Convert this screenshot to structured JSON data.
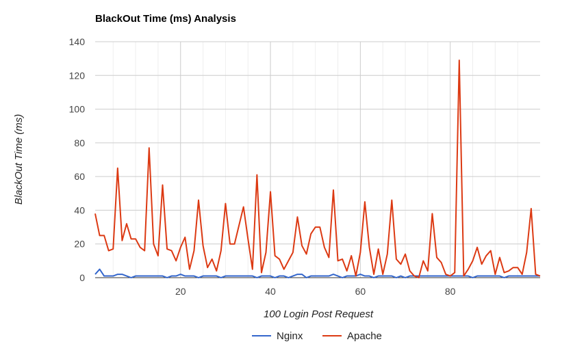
{
  "chart_data": {
    "type": "line",
    "title": "BlackOut Time (ms) Analysis",
    "xlabel": "100 Login Post Request",
    "ylabel": "BlackOut Time (ms)",
    "xlim": [
      1,
      100
    ],
    "ylim": [
      0,
      140
    ],
    "x_ticks": [
      20,
      40,
      60,
      80
    ],
    "x_tick_labels": [
      "20",
      "40",
      "60",
      "80"
    ],
    "y_ticks": [
      0,
      20,
      40,
      60,
      80,
      100,
      120,
      140
    ],
    "y_tick_labels": [
      "0",
      "20",
      "40",
      "60",
      "80",
      "100",
      "120",
      "140"
    ],
    "minor_x_grid_step": 5,
    "grid": true,
    "legend_position": "bottom",
    "x": [
      1,
      2,
      3,
      4,
      5,
      6,
      7,
      8,
      9,
      10,
      11,
      12,
      13,
      14,
      15,
      16,
      17,
      18,
      19,
      20,
      21,
      22,
      23,
      24,
      25,
      26,
      27,
      28,
      29,
      30,
      31,
      32,
      33,
      34,
      35,
      36,
      37,
      38,
      39,
      40,
      41,
      42,
      43,
      44,
      45,
      46,
      47,
      48,
      49,
      50,
      51,
      52,
      53,
      54,
      55,
      56,
      57,
      58,
      59,
      60,
      61,
      62,
      63,
      64,
      65,
      66,
      67,
      68,
      69,
      70,
      71,
      72,
      73,
      74,
      75,
      76,
      77,
      78,
      79,
      80,
      81,
      82,
      83,
      84,
      85,
      86,
      87,
      88,
      89,
      90,
      91,
      92,
      93,
      94,
      95,
      96,
      97,
      98,
      99,
      100
    ],
    "series": [
      {
        "name": "Nginx",
        "color": "#3366cc",
        "values": [
          2,
          5,
          1,
          1,
          1,
          2,
          2,
          1,
          0,
          1,
          1,
          1,
          1,
          1,
          1,
          1,
          0,
          1,
          1,
          2,
          1,
          1,
          1,
          0,
          1,
          1,
          1,
          1,
          0,
          1,
          1,
          1,
          1,
          1,
          1,
          1,
          0,
          1,
          1,
          1,
          0,
          1,
          1,
          0,
          1,
          2,
          2,
          0,
          1,
          1,
          1,
          1,
          1,
          2,
          1,
          0,
          1,
          1,
          1,
          2,
          1,
          1,
          0,
          1,
          1,
          1,
          1,
          0,
          1,
          0,
          1,
          1,
          1,
          1,
          1,
          1,
          1,
          1,
          1,
          1,
          1,
          1,
          1,
          1,
          0,
          1,
          1,
          1,
          1,
          1,
          1,
          0,
          1,
          1,
          1,
          1,
          1,
          1,
          1,
          1
        ]
      },
      {
        "name": "Apache",
        "color": "#dc3912",
        "values": [
          38,
          25,
          25,
          16,
          17,
          65,
          22,
          32,
          23,
          23,
          18,
          16,
          77,
          20,
          13,
          55,
          17,
          16,
          10,
          18,
          24,
          5,
          16,
          46,
          19,
          6,
          11,
          4,
          16,
          44,
          20,
          20,
          31,
          42,
          23,
          5,
          61,
          3,
          15,
          51,
          13,
          11,
          5,
          10,
          15,
          36,
          19,
          14,
          26,
          30,
          30,
          18,
          12,
          52,
          10,
          11,
          4,
          13,
          1,
          15,
          45,
          18,
          2,
          17,
          2,
          14,
          46,
          11,
          8,
          14,
          4,
          1,
          0,
          10,
          4,
          38,
          12,
          9,
          2,
          1,
          3,
          129,
          1,
          5,
          10,
          18,
          8,
          13,
          16,
          2,
          12,
          3,
          4,
          6,
          6,
          2,
          15,
          41,
          2,
          1
        ]
      }
    ]
  }
}
